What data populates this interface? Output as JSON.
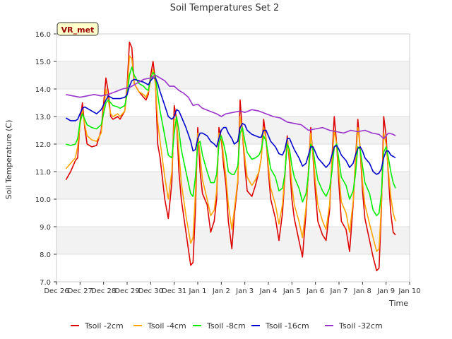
{
  "chart_data": {
    "type": "line",
    "title": "Soil Temperatures Set 2",
    "xlabel": "Time",
    "ylabel": "Soil Temperature (C)",
    "site_label": "VR_met",
    "xlim": [
      0,
      15
    ],
    "ylim": [
      7.0,
      16.0
    ],
    "x_ticks": [
      0,
      1,
      2,
      3,
      4,
      5,
      6,
      7,
      8,
      9,
      10,
      11,
      12,
      13,
      14,
      15
    ],
    "x_tick_labels": [
      "Dec 26",
      "Dec 27",
      "Dec 28",
      "Dec 29",
      "Dec 30",
      "Dec 31",
      "Jan 1",
      "Jan 2",
      "Jan 3",
      "Jan 4",
      "Jan 5",
      "Jan 6",
      "Jan 7",
      "Jan 8",
      "Jan 9",
      "Jan 10"
    ],
    "y_ticks": [
      7.0,
      8.0,
      9.0,
      10.0,
      11.0,
      12.0,
      13.0,
      14.0,
      15.0,
      16.0
    ],
    "y_tick_labels": [
      "7.0",
      "8.0",
      "9.0",
      "10.0",
      "11.0",
      "12.0",
      "13.0",
      "14.0",
      "15.0",
      "16.0"
    ],
    "legend_position": "bottom",
    "series": [
      {
        "name": "Tsoil -2cm",
        "color": "#dd0000",
        "x": [
          0.4,
          0.6,
          0.8,
          0.9,
          1.0,
          1.1,
          1.2,
          1.3,
          1.5,
          1.7,
          1.9,
          2.1,
          2.2,
          2.3,
          2.4,
          2.6,
          2.7,
          2.9,
          3.0,
          3.1,
          3.2,
          3.3,
          3.5,
          3.7,
          3.8,
          3.9,
          4.0,
          4.1,
          4.2,
          4.3,
          4.4,
          4.6,
          4.75,
          4.9,
          5.0,
          5.1,
          5.2,
          5.3,
          5.5,
          5.7,
          5.8,
          5.9,
          6.0,
          6.1,
          6.2,
          6.4,
          6.55,
          6.7,
          6.8,
          6.9,
          7.0,
          7.1,
          7.2,
          7.3,
          7.45,
          7.55,
          7.7,
          7.8,
          7.9,
          8.0,
          8.1,
          8.3,
          8.45,
          8.6,
          8.7,
          8.8,
          8.9,
          9.0,
          9.1,
          9.3,
          9.45,
          9.6,
          9.7,
          9.8,
          9.9,
          10.0,
          10.1,
          10.3,
          10.45,
          10.6,
          10.7,
          10.8,
          10.9,
          11.0,
          11.1,
          11.3,
          11.45,
          11.6,
          11.7,
          11.8,
          11.9,
          12.0,
          12.1,
          12.3,
          12.45,
          12.6,
          12.7,
          12.8,
          12.9,
          13.0,
          13.1,
          13.3,
          13.45,
          13.6,
          13.7,
          13.8,
          13.9,
          14.0,
          14.1,
          14.2,
          14.3,
          14.4
        ],
        "y": [
          10.7,
          11.0,
          11.4,
          11.5,
          12.8,
          13.5,
          12.6,
          12.0,
          11.9,
          11.95,
          12.5,
          14.4,
          13.9,
          13.0,
          12.9,
          13.0,
          12.9,
          13.2,
          14.1,
          15.7,
          15.5,
          14.2,
          13.9,
          13.7,
          13.6,
          13.8,
          14.5,
          15.0,
          14.3,
          12.0,
          11.5,
          10.0,
          9.3,
          10.6,
          13.4,
          12.9,
          11.0,
          10.0,
          8.8,
          7.6,
          7.7,
          9.6,
          12.6,
          11.0,
          10.2,
          9.8,
          8.8,
          9.2,
          10.0,
          12.6,
          12.2,
          11.2,
          10.5,
          9.2,
          8.2,
          9.4,
          10.6,
          13.6,
          12.4,
          11.2,
          10.3,
          10.1,
          10.5,
          11.0,
          11.5,
          12.9,
          12.2,
          11.0,
          10.0,
          9.3,
          8.5,
          9.5,
          10.8,
          12.3,
          11.3,
          10.0,
          9.3,
          8.5,
          7.9,
          9.5,
          11.0,
          12.6,
          11.5,
          10.2,
          9.2,
          8.7,
          8.5,
          9.6,
          11.5,
          13.0,
          12.0,
          10.5,
          9.2,
          8.9,
          8.1,
          9.8,
          11.4,
          12.9,
          11.8,
          10.3,
          9.3,
          8.5,
          7.9,
          7.4,
          7.5,
          9.6,
          13.0,
          12.3,
          10.8,
          9.5,
          8.8,
          8.7
        ]
      },
      {
        "name": "Tsoil -4cm",
        "color": "#ffa500",
        "x": [
          0.4,
          0.6,
          0.8,
          0.9,
          1.0,
          1.1,
          1.2,
          1.3,
          1.5,
          1.7,
          1.9,
          2.1,
          2.2,
          2.3,
          2.4,
          2.6,
          2.7,
          2.9,
          3.0,
          3.1,
          3.2,
          3.3,
          3.5,
          3.7,
          3.8,
          3.9,
          4.0,
          4.1,
          4.2,
          4.3,
          4.4,
          4.6,
          4.75,
          4.9,
          5.0,
          5.1,
          5.2,
          5.3,
          5.5,
          5.7,
          5.8,
          5.9,
          6.0,
          6.1,
          6.2,
          6.4,
          6.55,
          6.7,
          6.8,
          6.9,
          7.0,
          7.1,
          7.2,
          7.3,
          7.45,
          7.55,
          7.7,
          7.8,
          7.9,
          8.0,
          8.1,
          8.3,
          8.45,
          8.6,
          8.7,
          8.8,
          8.9,
          9.0,
          9.1,
          9.3,
          9.45,
          9.6,
          9.7,
          9.8,
          9.9,
          10.0,
          10.1,
          10.3,
          10.45,
          10.6,
          10.7,
          10.8,
          10.9,
          11.0,
          11.1,
          11.3,
          11.45,
          11.6,
          11.7,
          11.8,
          11.9,
          12.0,
          12.1,
          12.3,
          12.45,
          12.6,
          12.7,
          12.8,
          12.9,
          13.0,
          13.1,
          13.3,
          13.45,
          13.6,
          13.7,
          13.8,
          13.9,
          14.0,
          14.1,
          14.2,
          14.3,
          14.4
        ],
        "y": [
          11.1,
          11.3,
          11.5,
          11.9,
          12.7,
          13.2,
          12.7,
          12.3,
          12.15,
          12.1,
          12.4,
          14.0,
          13.6,
          13.1,
          13.0,
          13.1,
          13.0,
          13.2,
          13.9,
          15.2,
          15.1,
          14.2,
          13.9,
          13.8,
          13.7,
          13.9,
          14.3,
          14.7,
          14.2,
          12.8,
          12.1,
          10.8,
          10.0,
          11.0,
          12.9,
          12.9,
          11.7,
          10.6,
          9.4,
          8.4,
          8.6,
          10.2,
          12.4,
          11.6,
          10.7,
          10.0,
          9.4,
          9.6,
          10.3,
          12.4,
          12.3,
          11.5,
          10.8,
          9.8,
          8.9,
          9.6,
          10.7,
          13.0,
          12.4,
          11.5,
          10.8,
          10.5,
          10.7,
          11.0,
          11.5,
          12.6,
          12.2,
          11.2,
          10.4,
          9.8,
          9.1,
          9.8,
          10.9,
          12.2,
          11.5,
          10.5,
          9.8,
          9.2,
          8.6,
          9.7,
          11.0,
          12.4,
          11.6,
          10.6,
          9.8,
          9.2,
          8.9,
          9.8,
          11.4,
          12.5,
          12.0,
          10.9,
          9.9,
          9.5,
          8.8,
          9.9,
          11.3,
          12.6,
          11.9,
          10.6,
          9.8,
          9.1,
          8.6,
          8.1,
          8.2,
          9.8,
          12.4,
          12.0,
          11.0,
          10.1,
          9.5,
          9.2
        ]
      },
      {
        "name": "Tsoil -8cm",
        "color": "#00ee00",
        "x": [
          0.4,
          0.6,
          0.8,
          0.9,
          1.0,
          1.1,
          1.2,
          1.3,
          1.5,
          1.7,
          1.9,
          2.1,
          2.2,
          2.3,
          2.4,
          2.6,
          2.7,
          2.9,
          3.0,
          3.1,
          3.2,
          3.3,
          3.5,
          3.7,
          3.8,
          3.9,
          4.0,
          4.1,
          4.2,
          4.3,
          4.4,
          4.6,
          4.75,
          4.9,
          5.0,
          5.1,
          5.2,
          5.3,
          5.5,
          5.7,
          5.8,
          5.9,
          6.0,
          6.1,
          6.2,
          6.4,
          6.55,
          6.7,
          6.8,
          6.9,
          7.0,
          7.1,
          7.2,
          7.3,
          7.45,
          7.55,
          7.7,
          7.8,
          7.9,
          8.0,
          8.1,
          8.3,
          8.45,
          8.6,
          8.7,
          8.8,
          8.9,
          9.0,
          9.1,
          9.3,
          9.45,
          9.6,
          9.7,
          9.8,
          9.9,
          10.0,
          10.1,
          10.3,
          10.45,
          10.6,
          10.7,
          10.8,
          10.9,
          11.0,
          11.1,
          11.3,
          11.45,
          11.6,
          11.7,
          11.8,
          11.9,
          12.0,
          12.1,
          12.3,
          12.45,
          12.6,
          12.7,
          12.8,
          12.9,
          13.0,
          13.1,
          13.3,
          13.45,
          13.6,
          13.7,
          13.8,
          13.9,
          14.0,
          14.1,
          14.2,
          14.3,
          14.4
        ],
        "y": [
          12.0,
          11.95,
          12.0,
          12.2,
          12.8,
          13.1,
          12.9,
          12.7,
          12.6,
          12.55,
          12.7,
          13.5,
          13.6,
          13.5,
          13.4,
          13.35,
          13.3,
          13.4,
          13.8,
          14.5,
          14.8,
          14.5,
          14.2,
          14.1,
          14.0,
          13.95,
          14.4,
          14.6,
          14.5,
          13.8,
          13.2,
          12.3,
          11.6,
          11.5,
          12.4,
          13.0,
          12.5,
          11.8,
          11.0,
          10.2,
          10.1,
          10.8,
          12.0,
          12.1,
          11.6,
          11.0,
          10.6,
          10.6,
          10.9,
          12.0,
          12.3,
          12.0,
          11.6,
          11.0,
          10.9,
          10.9,
          11.2,
          12.4,
          12.6,
          12.1,
          11.7,
          11.45,
          11.5,
          11.6,
          11.8,
          12.3,
          12.1,
          11.6,
          11.1,
          10.8,
          10.3,
          10.4,
          10.9,
          12.0,
          11.8,
          11.2,
          10.8,
          10.4,
          9.9,
          10.2,
          10.9,
          12.0,
          11.8,
          11.2,
          10.7,
          10.3,
          10.1,
          10.4,
          11.0,
          11.9,
          12.0,
          11.4,
          10.8,
          10.5,
          10.0,
          10.3,
          10.9,
          11.9,
          11.8,
          11.2,
          10.6,
          10.2,
          9.6,
          9.4,
          9.5,
          10.2,
          11.7,
          11.9,
          11.5,
          11.0,
          10.6,
          10.4
        ]
      },
      {
        "name": "Tsoil -16cm",
        "color": "#0000cc",
        "x": [
          0.4,
          0.6,
          0.8,
          0.9,
          1.0,
          1.1,
          1.2,
          1.3,
          1.5,
          1.7,
          1.9,
          2.1,
          2.2,
          2.3,
          2.4,
          2.6,
          2.7,
          2.9,
          3.0,
          3.1,
          3.2,
          3.3,
          3.5,
          3.7,
          3.8,
          3.9,
          4.0,
          4.1,
          4.2,
          4.3,
          4.4,
          4.6,
          4.75,
          4.9,
          5.0,
          5.1,
          5.2,
          5.3,
          5.5,
          5.7,
          5.8,
          5.9,
          6.0,
          6.1,
          6.2,
          6.4,
          6.55,
          6.7,
          6.8,
          6.9,
          7.0,
          7.1,
          7.2,
          7.3,
          7.45,
          7.55,
          7.7,
          7.8,
          7.9,
          8.0,
          8.1,
          8.3,
          8.45,
          8.6,
          8.7,
          8.8,
          8.9,
          9.0,
          9.1,
          9.3,
          9.45,
          9.6,
          9.7,
          9.8,
          9.9,
          10.0,
          10.1,
          10.3,
          10.45,
          10.6,
          10.7,
          10.8,
          10.9,
          11.0,
          11.1,
          11.3,
          11.45,
          11.6,
          11.7,
          11.8,
          11.9,
          12.0,
          12.1,
          12.3,
          12.45,
          12.6,
          12.7,
          12.8,
          12.9,
          13.0,
          13.1,
          13.3,
          13.45,
          13.6,
          13.7,
          13.8,
          13.9,
          14.0,
          14.1,
          14.2,
          14.3,
          14.4
        ],
        "y": [
          12.95,
          12.85,
          12.85,
          12.9,
          13.1,
          13.3,
          13.35,
          13.3,
          13.2,
          13.1,
          13.25,
          13.6,
          13.75,
          13.7,
          13.65,
          13.65,
          13.65,
          13.7,
          13.8,
          14.1,
          14.3,
          14.35,
          14.3,
          14.25,
          14.2,
          14.15,
          14.3,
          14.4,
          14.4,
          14.2,
          13.9,
          13.4,
          13.0,
          12.9,
          13.0,
          13.25,
          13.2,
          13.0,
          12.6,
          12.1,
          11.75,
          11.8,
          12.2,
          12.4,
          12.4,
          12.3,
          12.1,
          12.0,
          11.9,
          12.2,
          12.5,
          12.6,
          12.6,
          12.4,
          12.2,
          12.0,
          12.1,
          12.6,
          12.75,
          12.7,
          12.5,
          12.35,
          12.3,
          12.25,
          12.25,
          12.5,
          12.5,
          12.3,
          12.1,
          11.9,
          11.65,
          11.6,
          11.8,
          12.2,
          12.2,
          12.0,
          11.8,
          11.5,
          11.2,
          11.3,
          11.6,
          11.9,
          11.9,
          11.7,
          11.5,
          11.3,
          11.15,
          11.3,
          11.6,
          11.9,
          11.95,
          11.8,
          11.6,
          11.4,
          11.15,
          11.3,
          11.6,
          11.85,
          11.9,
          11.75,
          11.5,
          11.3,
          11.0,
          10.9,
          10.95,
          11.1,
          11.5,
          11.75,
          11.75,
          11.6,
          11.55,
          11.5
        ]
      },
      {
        "name": "Tsoil -32cm",
        "color": "#9933cc",
        "x": [
          0.4,
          0.7,
          1.0,
          1.3,
          1.6,
          1.9,
          2.2,
          2.5,
          2.8,
          3.1,
          3.4,
          3.7,
          4.0,
          4.2,
          4.4,
          4.6,
          4.8,
          5.0,
          5.2,
          5.4,
          5.6,
          5.8,
          6.0,
          6.2,
          6.5,
          6.8,
          7.0,
          7.2,
          7.5,
          7.8,
          8.0,
          8.3,
          8.6,
          8.9,
          9.2,
          9.5,
          9.8,
          10.1,
          10.4,
          10.7,
          11.0,
          11.3,
          11.6,
          11.9,
          12.2,
          12.5,
          12.8,
          13.1,
          13.4,
          13.7,
          13.9,
          14.1,
          14.3,
          14.4
        ],
        "y": [
          13.8,
          13.75,
          13.7,
          13.75,
          13.8,
          13.75,
          13.8,
          13.9,
          14.0,
          14.05,
          14.2,
          14.35,
          14.4,
          14.5,
          14.4,
          14.3,
          14.1,
          14.1,
          13.95,
          13.85,
          13.7,
          13.4,
          13.45,
          13.3,
          13.2,
          13.1,
          13.0,
          13.1,
          13.15,
          13.2,
          13.15,
          13.25,
          13.2,
          13.1,
          13.0,
          12.95,
          12.8,
          12.75,
          12.7,
          12.5,
          12.55,
          12.6,
          12.5,
          12.45,
          12.4,
          12.5,
          12.45,
          12.5,
          12.4,
          12.35,
          12.2,
          12.4,
          12.35,
          12.3
        ]
      }
    ]
  }
}
